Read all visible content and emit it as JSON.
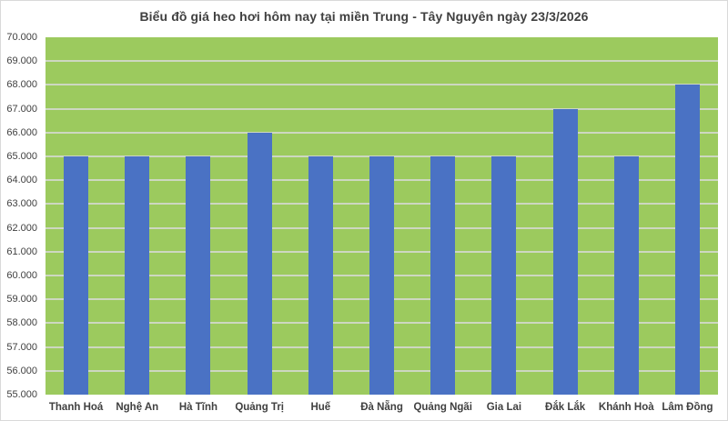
{
  "chart_data": {
    "type": "bar",
    "title": "Biểu đồ giá heo hơi hôm nay tại miền Trung - Tây Nguyên ngày 23/3/2026",
    "categories": [
      "Thanh Hoá",
      "Nghệ An",
      "Hà Tĩnh",
      "Quảng Trị",
      "Huế",
      "Đà Nẵng",
      "Quảng Ngãi",
      "Gia Lai",
      "Đắk Lắk",
      "Khánh Hoà",
      "Lâm Đồng"
    ],
    "values": [
      65000,
      65000,
      65000,
      66000,
      65000,
      65000,
      65000,
      65000,
      67000,
      65000,
      68000
    ],
    "xlabel": "",
    "ylabel": "",
    "ylim": [
      55000,
      70000
    ],
    "y_step": 1000,
    "y_tick_labels": [
      "70.000",
      "69.000",
      "68.000",
      "67.000",
      "66.000",
      "65.000",
      "64.000",
      "63.000",
      "62.000",
      "61.000",
      "60.000",
      "59.000",
      "58.000",
      "57.000",
      "56.000",
      "55.000"
    ],
    "grid": "horizontal",
    "legend": "none",
    "colors": {
      "bar": "#4a72c4",
      "plot_background": "#9cca5e",
      "gridline": "#d9d9d9",
      "text": "#404040",
      "border": "#d9d9d9",
      "page_background": "#ffffff"
    }
  }
}
